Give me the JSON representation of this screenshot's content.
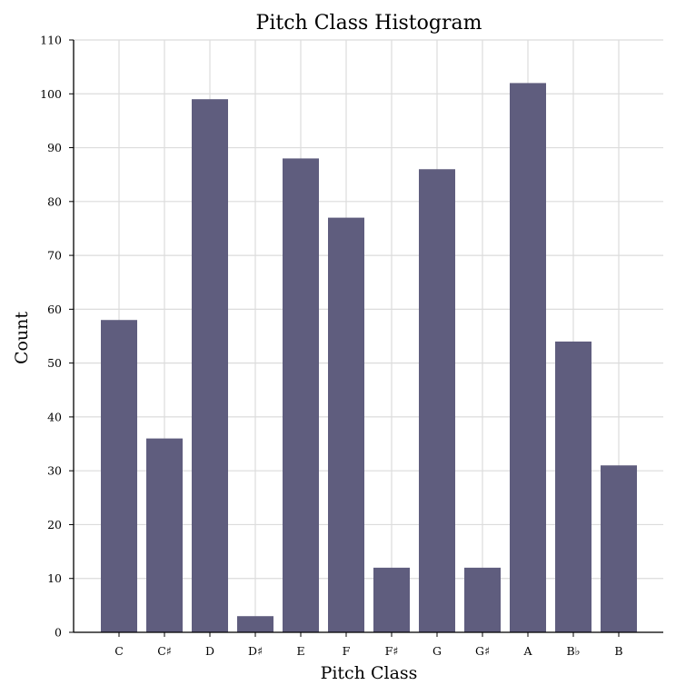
{
  "chart_data": {
    "type": "bar",
    "title": "Pitch Class Histogram",
    "xlabel": "Pitch Class",
    "ylabel": "Count",
    "categories": [
      "C",
      "C♯",
      "D",
      "D♯",
      "E",
      "F",
      "F♯",
      "G",
      "G♯",
      "A",
      "B♭",
      "B"
    ],
    "values": [
      58,
      36,
      99,
      3,
      88,
      77,
      12,
      86,
      12,
      102,
      54,
      31
    ],
    "ylim": [
      0,
      110
    ],
    "yticks": [
      0,
      10,
      20,
      30,
      40,
      50,
      60,
      70,
      80,
      90,
      100,
      110
    ],
    "grid": true,
    "bar_color": "#5f5d7e"
  }
}
